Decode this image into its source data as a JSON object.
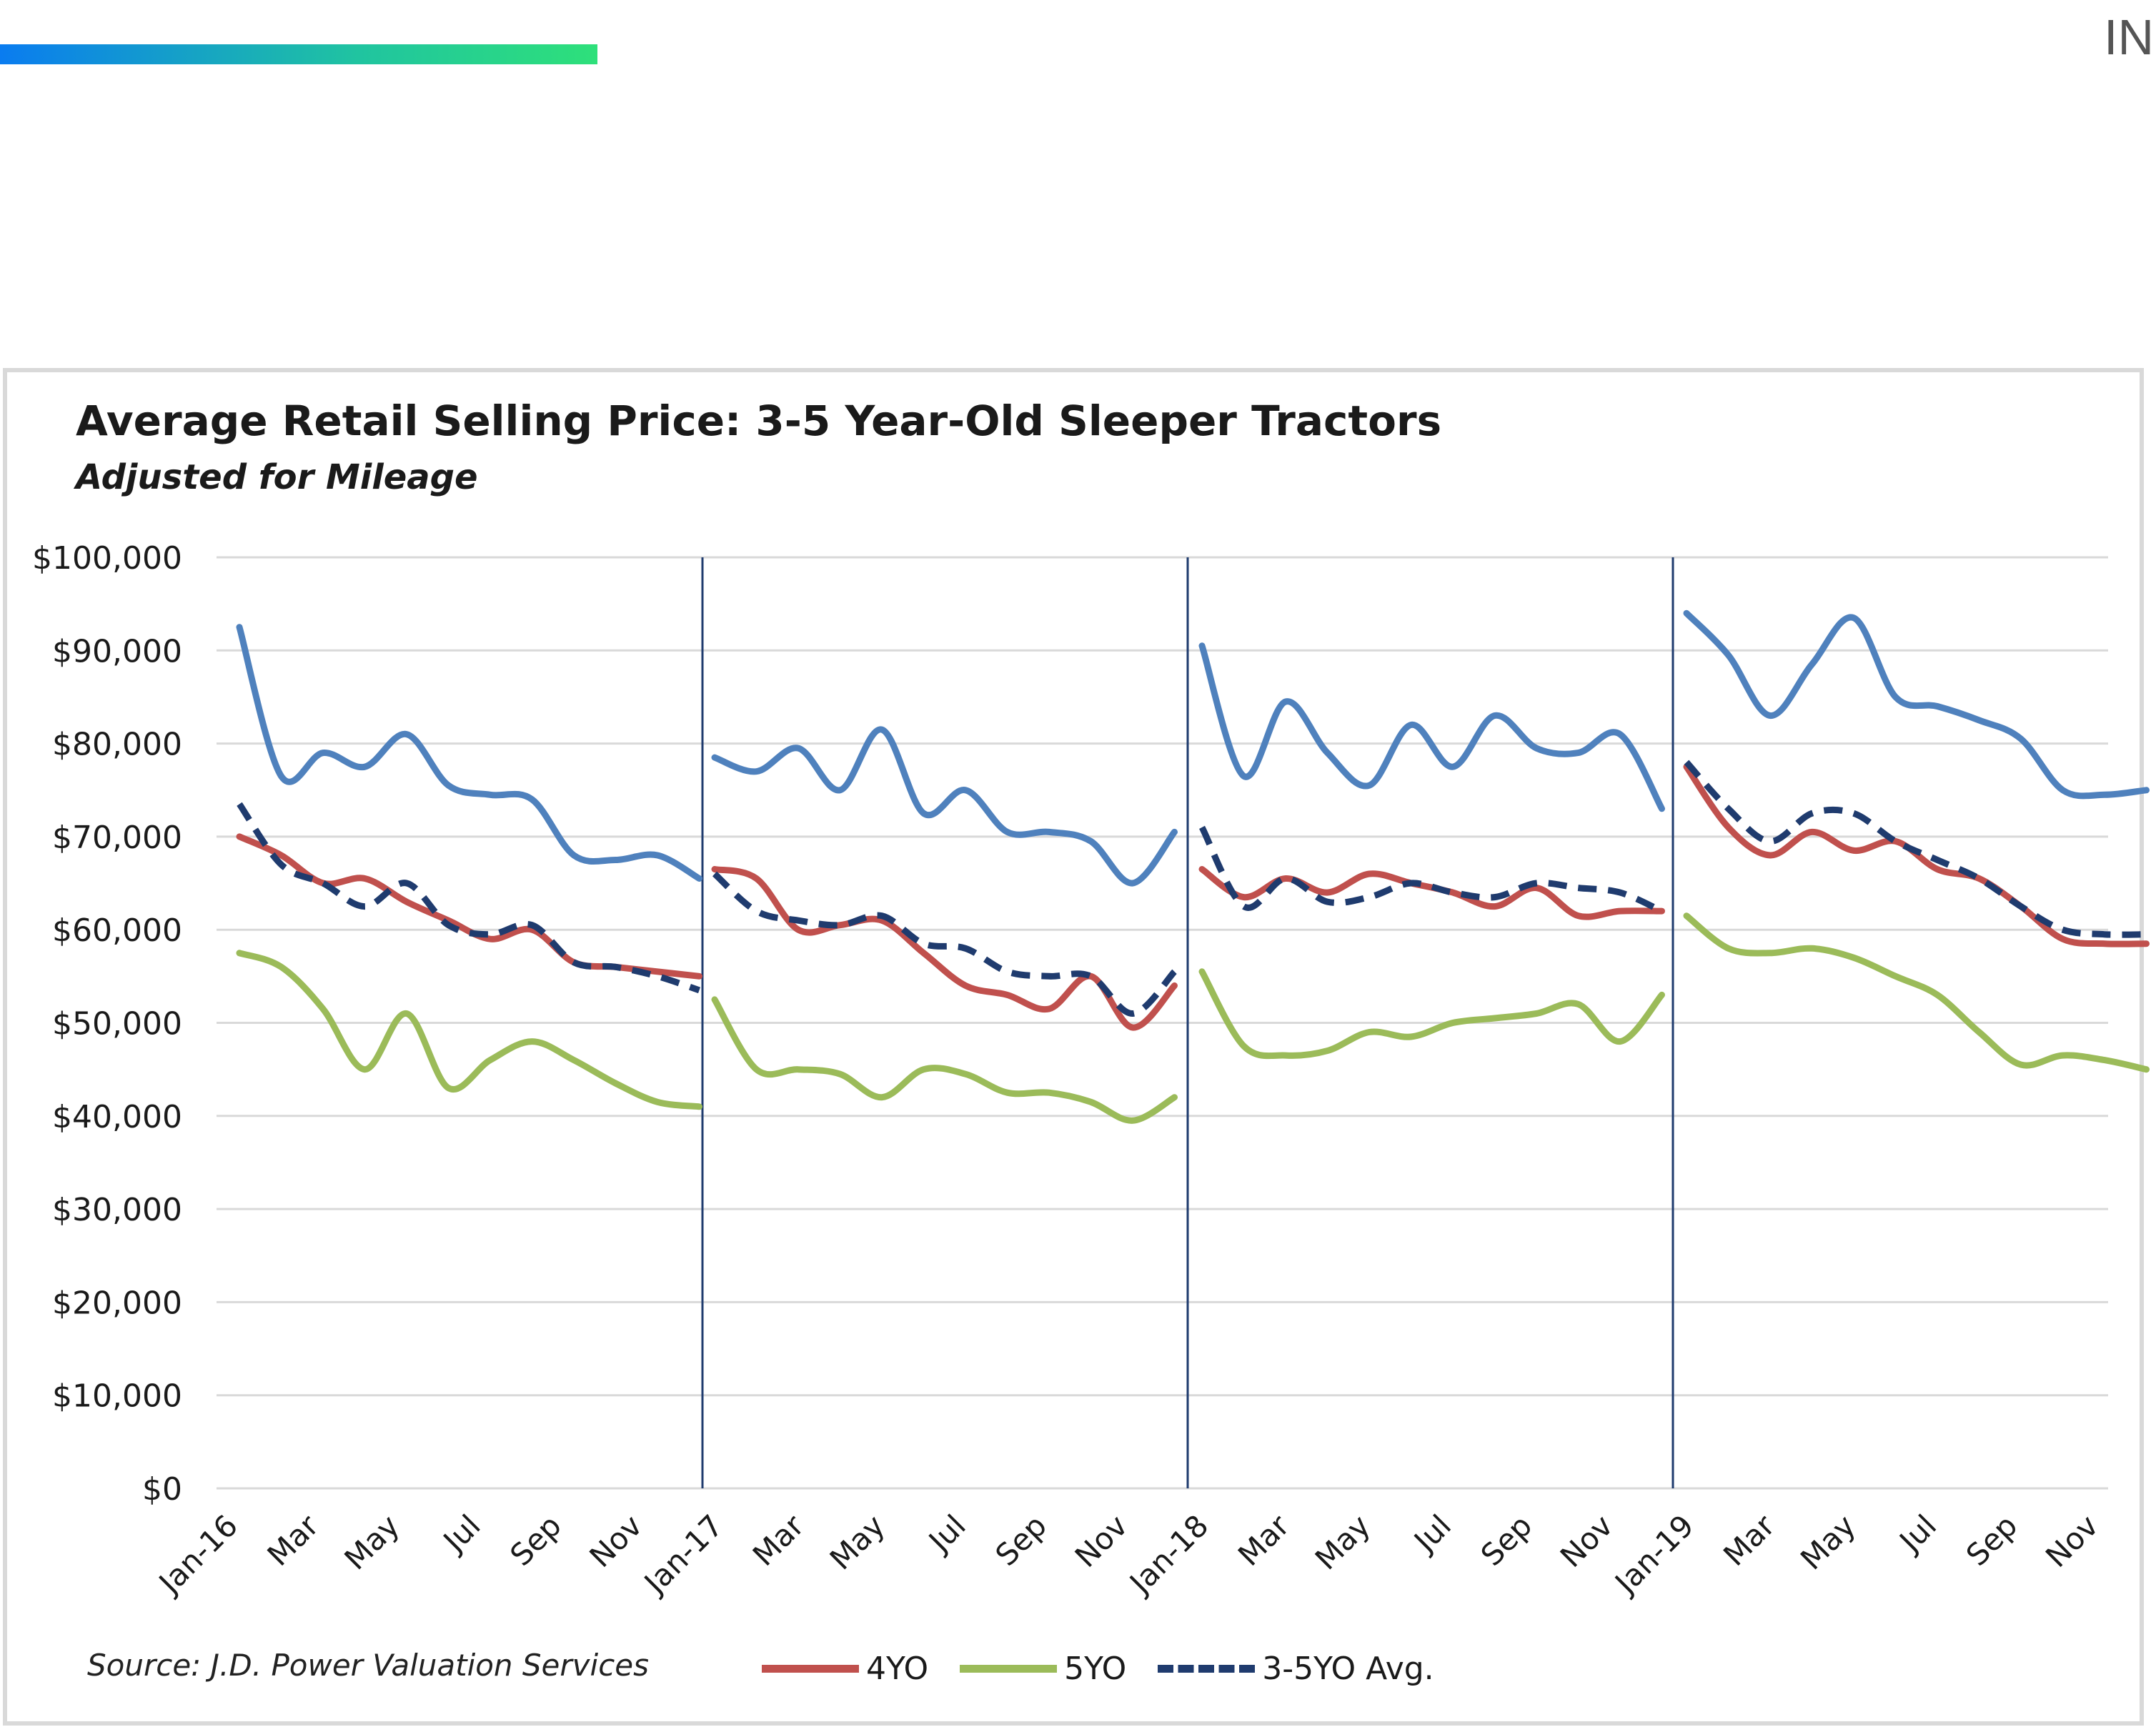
{
  "header": {
    "corner_text": "IN",
    "accent_bar_colors": [
      "#0a7cf0",
      "#2ee07a"
    ]
  },
  "chart_data": {
    "type": "line",
    "title": "Average Retail Selling Price: 3-5 Year-Old  Sleeper Tractors",
    "subtitle": "Adjusted for Mileage",
    "source": "Source: J.D. Power Valuation Services",
    "ylim": [
      0,
      100000
    ],
    "y_ticks": [
      "$0",
      "$10,000",
      "$20,000",
      "$30,000",
      "$40,000",
      "$50,000",
      "$60,000",
      "$70,000",
      "$80,000",
      "$90,000",
      "$100,000"
    ],
    "x_ticks": [
      "Jan-16",
      "Mar",
      "May",
      "Jul",
      "Sep",
      "Nov",
      "Jan-17",
      "Mar",
      "May",
      "Jul",
      "Sep",
      "Nov",
      "Jan-18",
      "Mar",
      "May",
      "Jul",
      "Sep",
      "Nov",
      "Jan-19",
      "Mar",
      "May",
      "Jul",
      "Sep",
      "Nov"
    ],
    "year_separators": [
      "Jan-17",
      "Jan-18",
      "Jan-19"
    ],
    "grid": "horizontal",
    "legend_position": "bottom",
    "series": [
      {
        "name": "",
        "color": "#4f81bd",
        "style": "solid",
        "years": [
          [
            92500,
            76500,
            79000,
            77500,
            81000,
            75500,
            74500,
            74000,
            68000,
            67500,
            68000,
            65500
          ],
          [
            78500,
            77000,
            79500,
            75000,
            81500,
            72500,
            75000,
            70500,
            70500,
            69500,
            65000,
            70500
          ],
          [
            90500,
            76500,
            84500,
            79000,
            75500,
            82000,
            77500,
            83000,
            79500,
            79000,
            81000,
            73000
          ],
          [
            94000,
            89500,
            83000,
            88500,
            93500,
            85000,
            84000,
            82500,
            80500,
            75000,
            74500,
            75000
          ]
        ]
      },
      {
        "name": "4YO",
        "color": "#c0504d",
        "style": "solid",
        "years": [
          [
            70000,
            68000,
            65000,
            65500,
            63000,
            61000,
            59000,
            60000,
            56500,
            56000,
            55500,
            55000
          ],
          [
            66500,
            65500,
            60000,
            60500,
            61000,
            57500,
            54000,
            53000,
            51500,
            55000,
            49500,
            54000
          ],
          [
            66500,
            63500,
            65500,
            64000,
            66000,
            65000,
            64000,
            62500,
            64500,
            61500,
            62000,
            62000
          ],
          [
            77500,
            71000,
            68000,
            70500,
            68500,
            69500,
            66500,
            65500,
            62500,
            59000,
            58500,
            58500
          ]
        ]
      },
      {
        "name": "5YO",
        "color": "#9bbb59",
        "style": "solid",
        "years": [
          [
            57500,
            56000,
            51500,
            45000,
            51000,
            43000,
            46000,
            48000,
            46000,
            43500,
            41500,
            41000
          ],
          [
            52500,
            45000,
            45000,
            44500,
            42000,
            45000,
            44500,
            42500,
            42500,
            41500,
            39500,
            42000
          ],
          [
            55500,
            47500,
            46500,
            47000,
            49000,
            48500,
            50000,
            50500,
            51000,
            52000,
            48000,
            53000
          ],
          [
            61500,
            58000,
            57500,
            58000,
            57000,
            55000,
            53000,
            49000,
            45500,
            46500,
            46000,
            45000
          ]
        ]
      },
      {
        "name": "3-5YO Avg.",
        "color": "#1f3b6e",
        "style": "dashed",
        "years": [
          [
            73500,
            67000,
            65000,
            62500,
            65000,
            60500,
            59500,
            60500,
            56500,
            56000,
            55000,
            53500
          ],
          [
            66000,
            62000,
            61000,
            60500,
            61500,
            58500,
            58000,
            55500,
            55000,
            55000,
            51000,
            55500
          ],
          [
            71000,
            62500,
            65500,
            63000,
            63500,
            65000,
            64000,
            63500,
            65000,
            64500,
            64000,
            62000
          ],
          [
            78000,
            73000,
            69500,
            72500,
            72500,
            69500,
            67500,
            65500,
            62500,
            60000,
            59500,
            59500
          ]
        ]
      }
    ]
  }
}
